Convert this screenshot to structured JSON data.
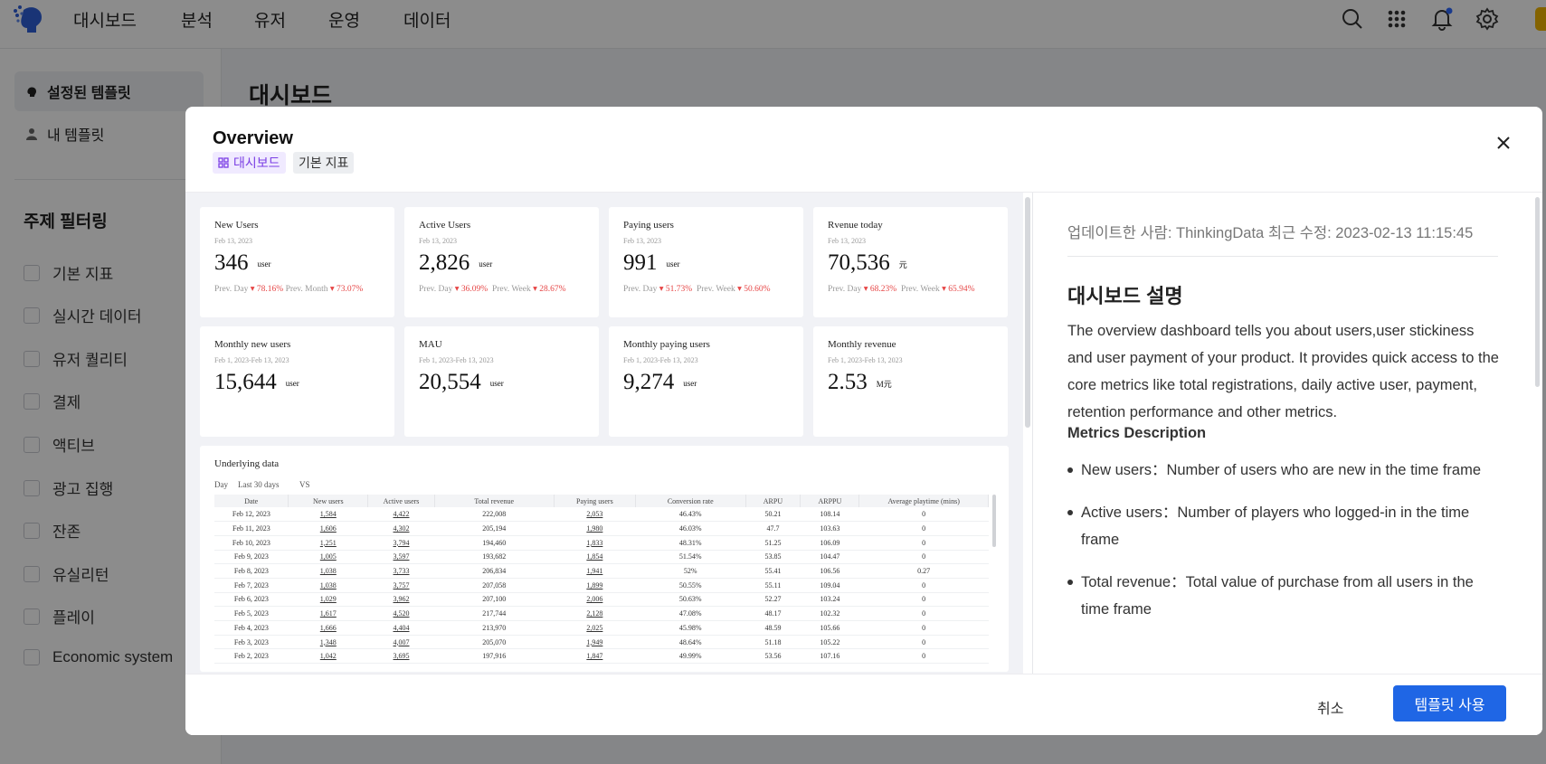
{
  "nav": {
    "items": [
      "대시보드",
      "분석",
      "유저",
      "운영",
      "데이터"
    ]
  },
  "colors": {
    "primary": "#1f66e5",
    "tag_purple": "#7b3fe4",
    "negative": "#e64545"
  },
  "sidebar": {
    "templates": [
      "설정된 템플릿",
      "내 템플릿"
    ],
    "filter_title": "주제 필터링",
    "filters": [
      "기본 지표",
      "실시간 데이터",
      "유저 퀄리티",
      "결제",
      "액티브",
      "광고 집행",
      "잔존",
      "유실리턴",
      "플레이",
      "Economic system"
    ]
  },
  "main": {
    "title": "대시보드"
  },
  "modal": {
    "title": "Overview",
    "tags": [
      "대시보드",
      "기본 지표"
    ],
    "cards_row1": [
      {
        "title": "New Users",
        "date": "Feb 13, 2023",
        "value": "346",
        "unit": "user",
        "cmp1_label": "Prev. Day",
        "cmp1": "78.16%",
        "cmp2_label": "Prev. Month",
        "cmp2": "73.07%"
      },
      {
        "title": "Active Users",
        "date": "Feb 13, 2023",
        "value": "2,826",
        "unit": "user",
        "cmp1_label": "Prev. Day",
        "cmp1": "36.09%",
        "cmp2_label": "Prev. Week",
        "cmp2": "28.67%"
      },
      {
        "title": "Paying users",
        "date": "Feb 13, 2023",
        "value": "991",
        "unit": "user",
        "cmp1_label": "Prev. Day",
        "cmp1": "51.73%",
        "cmp2_label": "Prev. Week",
        "cmp2": "50.60%"
      },
      {
        "title": "Rvenue today",
        "date": "Feb 13, 2023",
        "value": "70,536",
        "unit": "元",
        "cmp1_label": "Prev. Day",
        "cmp1": "68.23%",
        "cmp2_label": "Prev. Week",
        "cmp2": "65.94%"
      }
    ],
    "cards_row2": [
      {
        "title": "Monthly new users",
        "date": "Feb 1, 2023-Feb 13, 2023",
        "value": "15,644",
        "unit": "user"
      },
      {
        "title": "MAU",
        "date": "Feb 1, 2023-Feb 13, 2023",
        "value": "20,554",
        "unit": "user"
      },
      {
        "title": "Monthly paying users",
        "date": "Feb 1, 2023-Feb 13, 2023",
        "value": "9,274",
        "unit": "user"
      },
      {
        "title": "Monthly revenue",
        "date": "Feb 1, 2023-Feb 13, 2023",
        "value": "2.53",
        "unit": "M元"
      }
    ],
    "underlying": {
      "title": "Underlying data",
      "granularity": "Day",
      "range": "Last 30 days",
      "vs": "VS",
      "columns": [
        "Date",
        "New users",
        "Active users",
        "Total revenue",
        "Paying users",
        "Conversion rate",
        "ARPU",
        "ARPPU",
        "Average playtime (mins)"
      ],
      "rows": [
        [
          "Feb 12, 2023",
          "1,584",
          "4,422",
          "222,008",
          "2,053",
          "46.43%",
          "50.21",
          "108.14",
          "0"
        ],
        [
          "Feb 11, 2023",
          "1,606",
          "4,302",
          "205,194",
          "1,980",
          "46.03%",
          "47.7",
          "103.63",
          "0"
        ],
        [
          "Feb 10, 2023",
          "1,251",
          "3,794",
          "194,460",
          "1,833",
          "48.31%",
          "51.25",
          "106.09",
          "0"
        ],
        [
          "Feb 9, 2023",
          "1,005",
          "3,597",
          "193,682",
          "1,854",
          "51.54%",
          "53.85",
          "104.47",
          "0"
        ],
        [
          "Feb 8, 2023",
          "1,038",
          "3,733",
          "206,834",
          "1,941",
          "52%",
          "55.41",
          "106.56",
          "0.27"
        ],
        [
          "Feb 7, 2023",
          "1,038",
          "3,757",
          "207,058",
          "1,899",
          "50.55%",
          "55.11",
          "109.04",
          "0"
        ],
        [
          "Feb 6, 2023",
          "1,029",
          "3,962",
          "207,100",
          "2,006",
          "50.63%",
          "52.27",
          "103.24",
          "0"
        ],
        [
          "Feb 5, 2023",
          "1,617",
          "4,520",
          "217,744",
          "2,128",
          "47.08%",
          "48.17",
          "102.32",
          "0"
        ],
        [
          "Feb 4, 2023",
          "1,666",
          "4,404",
          "213,970",
          "2,025",
          "45.98%",
          "48.59",
          "105.66",
          "0"
        ],
        [
          "Feb 3, 2023",
          "1,348",
          "4,007",
          "205,070",
          "1,949",
          "48.64%",
          "51.18",
          "105.22",
          "0"
        ],
        [
          "Feb 2, 2023",
          "1,042",
          "3,695",
          "197,916",
          "1,847",
          "49.99%",
          "53.56",
          "107.16",
          "0"
        ]
      ]
    },
    "meta": "업데이트한 사람: ThinkingData  최근 수정: 2023-02-13 11:15:45",
    "description": {
      "heading": "대시보드 설명",
      "intro": "The overview dashboard tells you about users,user stickiness and user payment of your product. It provides quick access to the core metrics like total registrations, daily active user, payment, retention performance and other metrics.",
      "subheading": "Metrics Description",
      "items": [
        "New users：Number of users who are new in the time frame",
        "Active users：Number of players who logged-in in the time frame",
        "Total revenue：Total value of purchase from all users in the time frame"
      ]
    },
    "cancel_label": "취소",
    "use_label": "템플릿 사용"
  }
}
